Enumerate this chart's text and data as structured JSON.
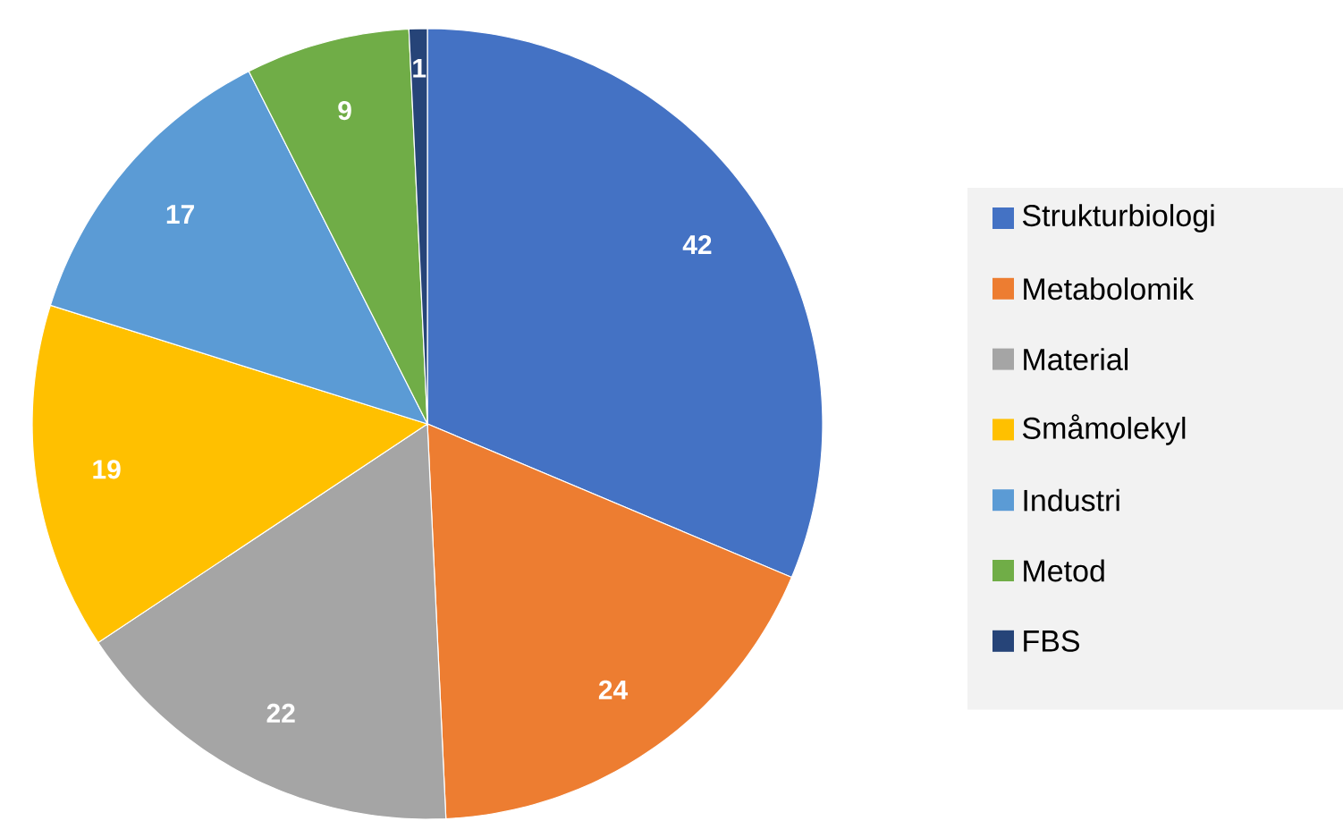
{
  "chart_data": {
    "type": "pie",
    "categories": [
      "Strukturbiologi",
      "Metabolomik",
      "Material",
      "Småmolekyl",
      "Industri",
      "Metod",
      "FBS"
    ],
    "values": [
      42,
      24,
      22,
      19,
      17,
      9,
      1
    ],
    "colors": [
      "#4472c4",
      "#ed7d31",
      "#a5a5a5",
      "#ffc000",
      "#5b9bd5",
      "#70ad47",
      "#264478"
    ],
    "data_labels": true,
    "legend": "right"
  }
}
